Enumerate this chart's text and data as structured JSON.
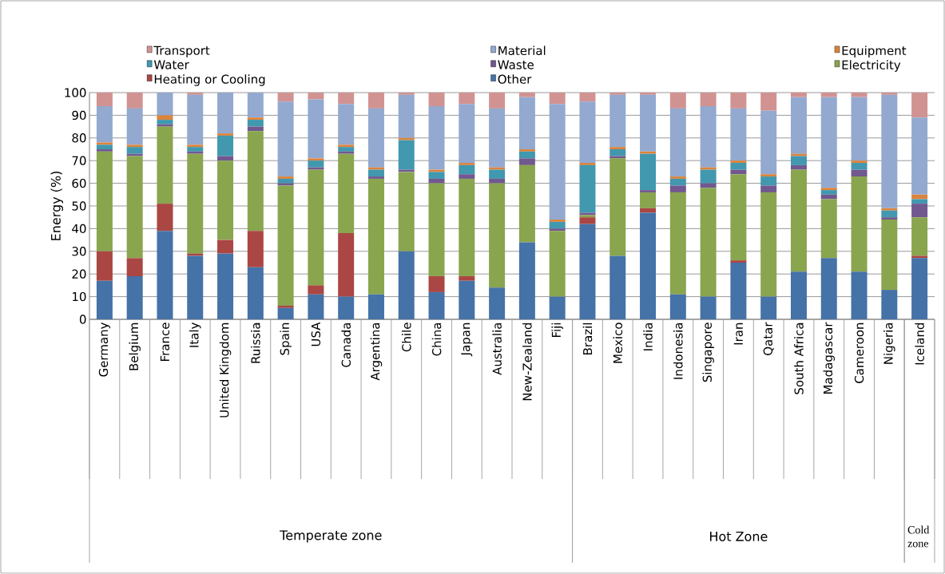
{
  "chart_data": {
    "type": "bar",
    "stacked": true,
    "ylabel": "Energy (%)",
    "legend": "top",
    "grid": "y",
    "ylim": [
      0,
      100
    ],
    "yticks": [
      0,
      10,
      20,
      30,
      40,
      50,
      60,
      70,
      80,
      90,
      100
    ],
    "categories": [
      "Germany",
      "Belgium",
      "France",
      "Italy",
      "United Kingdom",
      "Ruissia",
      "Spain",
      "USA",
      "Canada",
      "Argentina",
      "Chile",
      "China",
      "Japan",
      "Australia",
      "New-Zealand",
      "Fiji",
      "Brazil",
      "Mexico",
      "India",
      "Indonesia",
      "Singapore",
      "Iran",
      "Qatar",
      "South Africa",
      "Madagascar",
      "Cameroon",
      "Nigeria",
      "Iceland"
    ],
    "series": [
      {
        "name": "Other",
        "color": "#4572a7",
        "values": [
          17,
          19,
          39,
          28,
          29,
          23,
          5,
          11,
          10,
          11,
          30,
          12,
          17,
          14,
          34,
          10,
          42,
          28,
          47,
          11,
          10,
          25,
          10,
          21,
          27,
          21,
          13,
          27
        ]
      },
      {
        "name": "Heating or Cooling",
        "color": "#aa4643",
        "values": [
          13,
          8,
          12,
          1,
          6,
          16,
          1,
          4,
          28,
          0,
          0,
          7,
          2,
          0,
          0,
          0,
          3,
          0,
          2,
          0,
          0,
          1,
          0,
          0,
          0,
          0,
          0,
          1
        ]
      },
      {
        "name": "Electricity",
        "color": "#89a54e",
        "values": [
          44,
          45,
          34,
          44,
          35,
          44,
          53,
          51,
          35,
          51,
          35,
          41,
          43,
          46,
          34,
          29,
          1,
          43,
          7,
          45,
          48,
          38,
          46,
          45,
          26,
          42,
          31,
          17
        ]
      },
      {
        "name": "Waste",
        "color": "#71588f",
        "values": [
          1,
          1,
          1,
          1,
          2,
          2,
          1,
          1,
          1,
          1,
          1,
          2,
          2,
          2,
          3,
          1,
          1,
          1,
          1,
          3,
          2,
          2,
          3,
          2,
          2,
          3,
          1,
          6
        ]
      },
      {
        "name": "Water",
        "color": "#4198af",
        "values": [
          2,
          3,
          2,
          2,
          9,
          3,
          2,
          3,
          2,
          3,
          13,
          3,
          4,
          4,
          3,
          3,
          21,
          3,
          16,
          3,
          6,
          3,
          4,
          4,
          2,
          3,
          3,
          2
        ]
      },
      {
        "name": "Equipment",
        "color": "#db843d",
        "values": [
          1,
          1,
          2,
          1,
          1,
          1,
          1,
          1,
          1,
          1,
          1,
          1,
          1,
          1,
          1,
          1,
          1,
          1,
          1,
          1,
          1,
          1,
          1,
          1,
          1,
          1,
          1,
          2
        ]
      },
      {
        "name": "Material",
        "color": "#93a9cf",
        "values": [
          16,
          16,
          10,
          22,
          18,
          11,
          33,
          26,
          18,
          26,
          19,
          28,
          26,
          26,
          23,
          51,
          27,
          23,
          25,
          30,
          27,
          23,
          28,
          25,
          40,
          28,
          50,
          34
        ]
      },
      {
        "name": "Transport",
        "color": "#d19392",
        "values": [
          6,
          7,
          0,
          1,
          0,
          0,
          4,
          3,
          5,
          7,
          1,
          6,
          5,
          7,
          2,
          5,
          4,
          1,
          1,
          7,
          6,
          7,
          8,
          2,
          2,
          2,
          1,
          11
        ]
      }
    ],
    "annotations": [
      "Temperate zone",
      "Hot Zone",
      "Cold zone"
    ]
  }
}
